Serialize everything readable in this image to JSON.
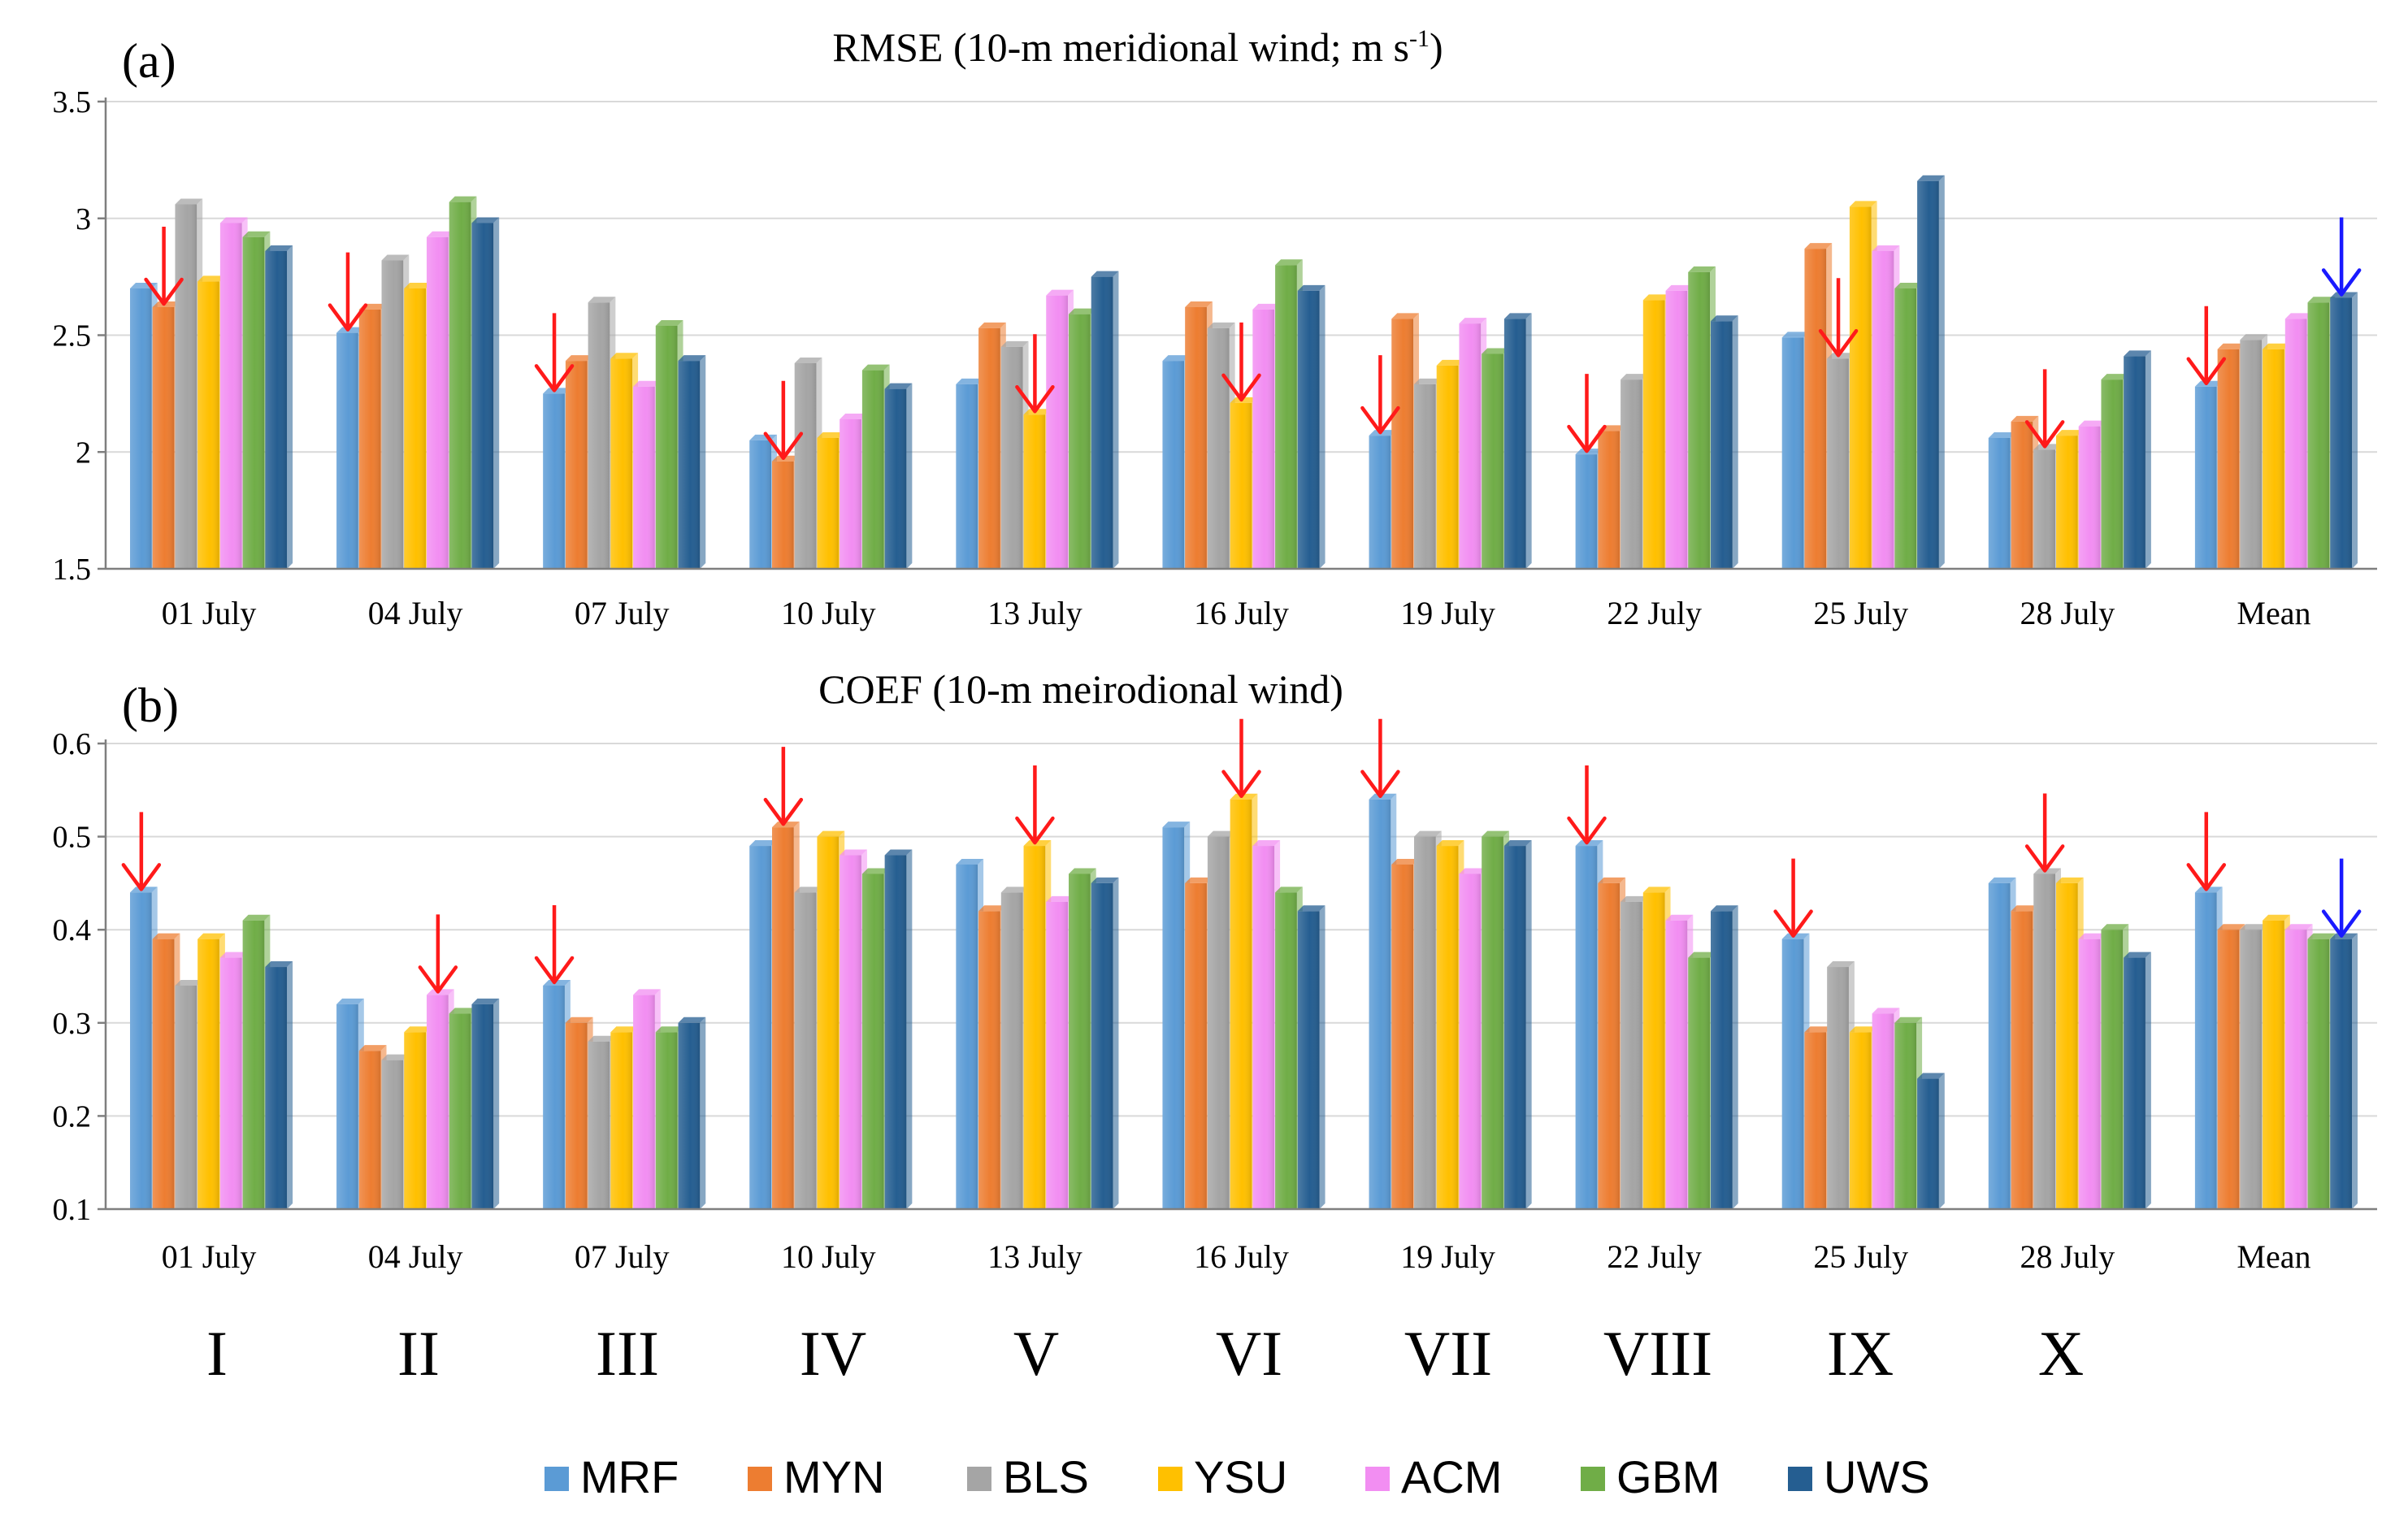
{
  "colors": {
    "MRF": "#5b9bd5",
    "MYN": "#ed7d31",
    "BLS": "#a5a5a5",
    "YSU": "#ffc000",
    "ACM": "#f28ef2",
    "GBM": "#70ad47",
    "UWS": "#255e91",
    "arrow_red": "#ff1a1a",
    "arrow_blue": "#1a1aff"
  },
  "legend": [
    "MRF",
    "MYN",
    "BLS",
    "YSU",
    "ACM",
    "GBM",
    "UWS"
  ],
  "roman_labels": [
    "I",
    "II",
    "III",
    "IV",
    "V",
    "VI",
    "VII",
    "VIII",
    "IX",
    "X"
  ],
  "chart_data": [
    {
      "type": "bar",
      "panel_label": "(a)",
      "title": "RMSE (10-m meridional wind; m s",
      "title_sup": "-1",
      "title_end": ")",
      "categories": [
        "01 July",
        "04 July",
        "07 July",
        "10 July",
        "13 July",
        "16 July",
        "19 July",
        "22 July",
        "25 July",
        "28 July",
        "Mean"
      ],
      "ylim": [
        1.5,
        3.5
      ],
      "yticks": [
        "1.5",
        "2",
        "2.5",
        "3",
        "3.5"
      ],
      "ytick_values": [
        1.5,
        2,
        2.5,
        3,
        3.5
      ],
      "series": [
        {
          "name": "MRF",
          "values": [
            2.7,
            2.51,
            2.25,
            2.05,
            2.29,
            2.39,
            2.07,
            1.99,
            2.49,
            2.06,
            2.28
          ]
        },
        {
          "name": "MYN",
          "values": [
            2.62,
            2.61,
            2.39,
            1.96,
            2.53,
            2.62,
            2.57,
            2.09,
            2.87,
            2.13,
            2.44
          ]
        },
        {
          "name": "BLS",
          "values": [
            3.06,
            2.82,
            2.64,
            2.38,
            2.45,
            2.53,
            2.29,
            2.31,
            2.4,
            2.01,
            2.48
          ]
        },
        {
          "name": "YSU",
          "values": [
            2.73,
            2.7,
            2.4,
            2.06,
            2.16,
            2.21,
            2.37,
            2.65,
            3.05,
            2.07,
            2.44
          ]
        },
        {
          "name": "ACM",
          "values": [
            2.98,
            2.92,
            2.28,
            2.14,
            2.67,
            2.61,
            2.55,
            2.69,
            2.86,
            2.11,
            2.57
          ]
        },
        {
          "name": "GBM",
          "values": [
            2.92,
            3.07,
            2.54,
            2.35,
            2.59,
            2.8,
            2.42,
            2.77,
            2.7,
            2.31,
            2.64
          ]
        },
        {
          "name": "UWS",
          "values": [
            2.86,
            2.98,
            2.39,
            2.27,
            2.75,
            2.69,
            2.57,
            2.56,
            3.16,
            2.41,
            2.66
          ]
        }
      ],
      "annotations": [
        {
          "category": 0,
          "series": 1,
          "color": "red",
          "kind": "arrow"
        },
        {
          "category": 1,
          "series": 0,
          "color": "red",
          "kind": "arrow"
        },
        {
          "category": 2,
          "series": 0,
          "color": "red",
          "kind": "arrow"
        },
        {
          "category": 3,
          "series": 1,
          "color": "red",
          "kind": "arrow"
        },
        {
          "category": 4,
          "series": 3,
          "color": "red",
          "kind": "arrow"
        },
        {
          "category": 5,
          "series": 3,
          "color": "red",
          "kind": "arrow"
        },
        {
          "category": 6,
          "series": 0,
          "color": "red",
          "kind": "arrow"
        },
        {
          "category": 7,
          "series": 0,
          "color": "red",
          "kind": "arrow"
        },
        {
          "category": 8,
          "series": 2,
          "color": "red",
          "kind": "arrow"
        },
        {
          "category": 9,
          "series": 2,
          "color": "red",
          "kind": "arrow"
        },
        {
          "category": 10,
          "series": 0,
          "color": "red",
          "kind": "arrow"
        },
        {
          "category": 10,
          "series": 6,
          "color": "blue",
          "kind": "arrow"
        }
      ]
    },
    {
      "type": "bar",
      "panel_label": "(b)",
      "title": "COEF (10-m meirodional wind)",
      "title_sup": "",
      "title_end": "",
      "categories": [
        "01 July",
        "04 July",
        "07 July",
        "10 July",
        "13 July",
        "16 July",
        "19 July",
        "22 July",
        "25 July",
        "28 July",
        "Mean"
      ],
      "ylim": [
        0.1,
        0.6
      ],
      "yticks": [
        "0.1",
        "0.2",
        "0.3",
        "0.4",
        "0.5",
        "0.6"
      ],
      "ytick_values": [
        0.1,
        0.2,
        0.3,
        0.4,
        0.5,
        0.6
      ],
      "series": [
        {
          "name": "MRF",
          "values": [
            0.44,
            0.32,
            0.34,
            0.49,
            0.47,
            0.51,
            0.54,
            0.49,
            0.39,
            0.45,
            0.44
          ]
        },
        {
          "name": "MYN",
          "values": [
            0.39,
            0.27,
            0.3,
            0.51,
            0.42,
            0.45,
            0.47,
            0.45,
            0.29,
            0.42,
            0.4
          ]
        },
        {
          "name": "BLS",
          "values": [
            0.34,
            0.26,
            0.28,
            0.44,
            0.44,
            0.5,
            0.5,
            0.43,
            0.36,
            0.46,
            0.4
          ]
        },
        {
          "name": "YSU",
          "values": [
            0.39,
            0.29,
            0.29,
            0.5,
            0.49,
            0.54,
            0.49,
            0.44,
            0.29,
            0.45,
            0.41
          ]
        },
        {
          "name": "ACM",
          "values": [
            0.37,
            0.33,
            0.33,
            0.48,
            0.43,
            0.49,
            0.46,
            0.41,
            0.31,
            0.39,
            0.4
          ]
        },
        {
          "name": "GBM",
          "values": [
            0.41,
            0.31,
            0.29,
            0.46,
            0.46,
            0.44,
            0.5,
            0.37,
            0.3,
            0.4,
            0.39
          ]
        },
        {
          "name": "UWS",
          "values": [
            0.36,
            0.32,
            0.3,
            0.48,
            0.45,
            0.42,
            0.49,
            0.42,
            0.24,
            0.37,
            0.39
          ]
        }
      ],
      "annotations": [
        {
          "category": 0,
          "series": 0,
          "color": "red",
          "kind": "arrow"
        },
        {
          "category": 1,
          "series": 4,
          "color": "red",
          "kind": "arrow"
        },
        {
          "category": 2,
          "series": 0,
          "color": "red",
          "kind": "arrow"
        },
        {
          "category": 3,
          "series": 1,
          "color": "red",
          "kind": "arrow"
        },
        {
          "category": 4,
          "series": 3,
          "color": "red",
          "kind": "arrow"
        },
        {
          "category": 5,
          "series": 3,
          "color": "red",
          "kind": "arrow"
        },
        {
          "category": 6,
          "series": 0,
          "color": "red",
          "kind": "arrow"
        },
        {
          "category": 7,
          "series": 0,
          "color": "red",
          "kind": "arrow"
        },
        {
          "category": 8,
          "series": 0,
          "color": "red",
          "kind": "arrow"
        },
        {
          "category": 9,
          "series": 2,
          "color": "red",
          "kind": "arrow"
        },
        {
          "category": 10,
          "series": 0,
          "color": "red",
          "kind": "arrow"
        },
        {
          "category": 10,
          "series": 6,
          "color": "blue",
          "kind": "arrow"
        }
      ]
    }
  ]
}
